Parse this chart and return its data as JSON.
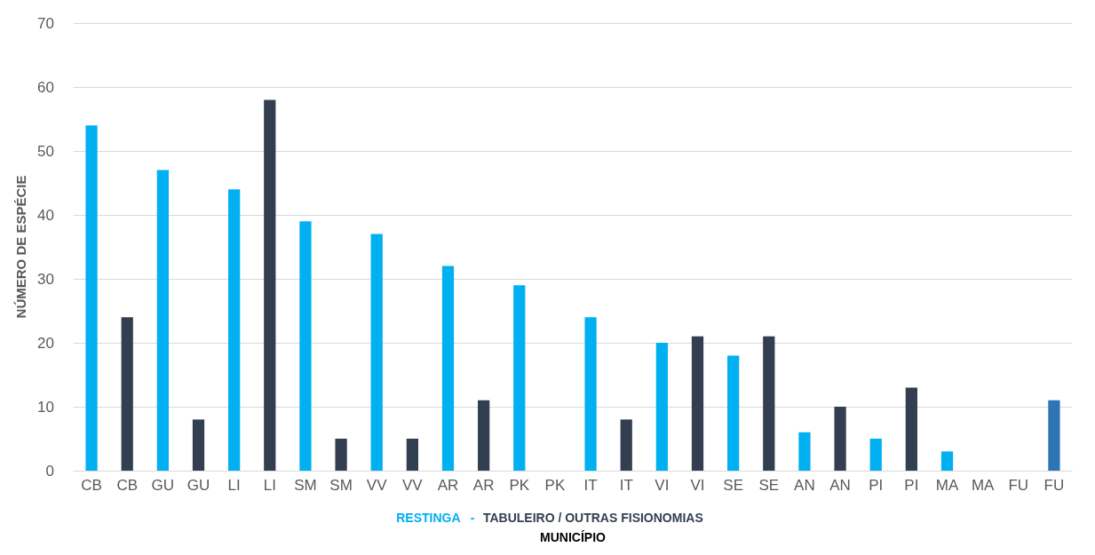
{
  "chart_data": {
    "type": "bar",
    "xlabel": "MUNICÍPIO",
    "ylabel": "NÚMERO DE ESPÉCIE",
    "categories": [
      "CB",
      "CB",
      "GU",
      "GU",
      "LI",
      "LI",
      "SM",
      "SM",
      "VV",
      "VV",
      "AR",
      "AR",
      "PK",
      "PK",
      "IT",
      "IT",
      "VI",
      "VI",
      "SE",
      "SE",
      "AN",
      "AN",
      "PI",
      "PI",
      "MA",
      "MA",
      "FU",
      "FU"
    ],
    "series": [
      {
        "name": "RESTINGA",
        "color": "#00b0f0",
        "values": [
          54,
          null,
          47,
          null,
          44,
          null,
          39,
          null,
          37,
          null,
          32,
          null,
          29,
          null,
          24,
          null,
          20,
          null,
          18,
          null,
          6,
          null,
          5,
          null,
          3,
          null,
          0,
          null
        ]
      },
      {
        "name": "TABULEIRO / OUTRAS FISIONOMIAS",
        "color": "#333f50",
        "colors": [
          null,
          "#333f50",
          null,
          "#333f50",
          null,
          "#333f50",
          null,
          "#333f50",
          null,
          "#333f50",
          null,
          "#333f50",
          null,
          "#333f50",
          null,
          "#333f50",
          null,
          "#333f50",
          null,
          "#333f50",
          null,
          "#333f50",
          null,
          "#333f50",
          null,
          "#333f50",
          null,
          "#2e75b6"
        ],
        "values": [
          null,
          24,
          null,
          8,
          null,
          58,
          null,
          5,
          null,
          5,
          null,
          11,
          null,
          0,
          null,
          8,
          null,
          21,
          null,
          21,
          null,
          10,
          null,
          13,
          null,
          0,
          null,
          11
        ]
      }
    ],
    "annotations": [
      "-"
    ],
    "ylim": [
      0,
      70
    ],
    "yticks": [
      0,
      10,
      20,
      30,
      40,
      50,
      60,
      70
    ],
    "grid": "y",
    "legend": "bottom"
  }
}
